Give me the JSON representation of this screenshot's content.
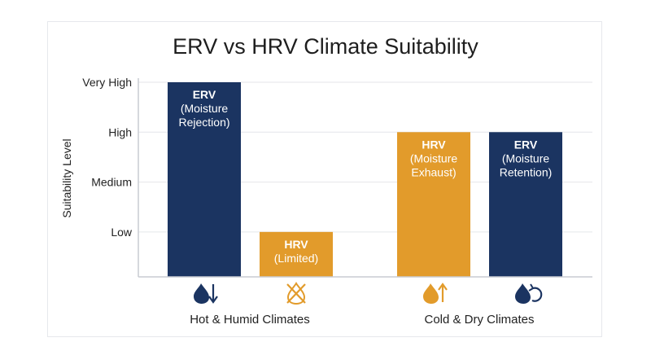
{
  "chart_data": {
    "type": "bar",
    "title": "ERV vs HRV Climate Suitability",
    "ylabel": "Suitability Level",
    "yticks": [
      "Low",
      "Medium",
      "High",
      "Very High"
    ],
    "ylim": [
      0.1,
      4
    ],
    "grid": true,
    "groups": [
      {
        "label": "Hot & Humid Climates",
        "bars": [
          {
            "name": "ERV",
            "detail": [
              "(Moisture",
              "Rejection)"
            ],
            "value": 4,
            "color": "#1b3461",
            "icon": "water-drop-down-arrow-icon"
          },
          {
            "name": "HRV",
            "detail": [
              "(Limited)"
            ],
            "value": 1,
            "color": "#e29b2b",
            "icon": "water-drop-crossed-out-icon"
          }
        ]
      },
      {
        "label": "Cold & Dry Climates",
        "bars": [
          {
            "name": "HRV",
            "detail": [
              "(Moisture",
              "Exhaust)"
            ],
            "value": 3,
            "color": "#e29b2b",
            "icon": "water-drop-up-arrow-icon"
          },
          {
            "name": "ERV",
            "detail": [
              "(Moisture",
              "Retention)"
            ],
            "value": 3,
            "color": "#1b3461",
            "icon": "water-drop-recycle-icon"
          }
        ]
      }
    ]
  },
  "colors": {
    "navy": "#1b3461",
    "amber": "#e29b2b",
    "grid": "#e4e6ea",
    "axis": "#c9ccd2"
  }
}
